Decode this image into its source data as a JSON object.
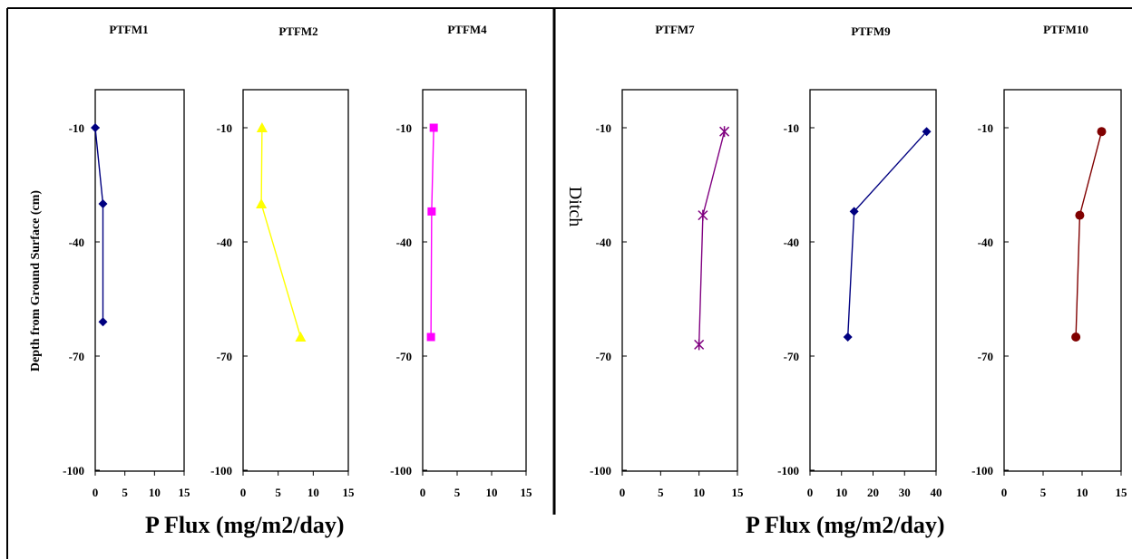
{
  "figure": {
    "left_xlabel": "P Flux (mg/m2/day)",
    "right_xlabel": "P Flux (mg/m2/day)",
    "ylabel": "Depth from Ground Surface (cm)",
    "side_label": "Ditch"
  },
  "chart_data": [
    {
      "type": "line",
      "title": "PTFM1",
      "marker": "diamond",
      "color": "#000080",
      "x": [
        0,
        1.3,
        1.3
      ],
      "y": [
        -10,
        -30,
        -61
      ],
      "xlim": [
        0,
        15
      ],
      "xticks": [
        0,
        5,
        10,
        15
      ],
      "ylim": [
        -100,
        -10
      ],
      "yticks": [
        -10,
        -40,
        -70,
        -100
      ]
    },
    {
      "type": "line",
      "title": "PTFM2",
      "marker": "triangle",
      "color": "#FFFF00",
      "x": [
        2.7,
        2.6,
        8.2
      ],
      "y": [
        -10,
        -30,
        -65
      ],
      "xlim": [
        0,
        15
      ],
      "xticks": [
        0,
        5,
        10,
        15
      ],
      "ylim": [
        -100,
        -10
      ],
      "yticks": [
        -10,
        -40,
        -70,
        -100
      ]
    },
    {
      "type": "line",
      "title": "PTFM4",
      "marker": "square",
      "color": "#FF00FF",
      "x": [
        1.6,
        1.3,
        1.2
      ],
      "y": [
        -10,
        -32,
        -65
      ],
      "xlim": [
        0,
        15
      ],
      "xticks": [
        0,
        5,
        10,
        15
      ],
      "ylim": [
        -100,
        -10
      ],
      "yticks": [
        -10,
        -40,
        -70,
        -100
      ]
    },
    {
      "type": "line",
      "title": "PTFM7",
      "marker": "star",
      "color": "#800080",
      "x": [
        13.3,
        10.5,
        10.0
      ],
      "y": [
        -11,
        -33,
        -67
      ],
      "xlim": [
        0,
        15
      ],
      "xticks": [
        0,
        5,
        10,
        15
      ],
      "ylim": [
        -100,
        -10
      ],
      "yticks": [
        -10,
        -40,
        -70,
        -100
      ]
    },
    {
      "type": "line",
      "title": "PTFM9",
      "marker": "diamond",
      "color": "#000080",
      "x": [
        37,
        14,
        12
      ],
      "y": [
        -11,
        -32,
        -65
      ],
      "xlim": [
        0,
        40
      ],
      "xticks": [
        0,
        10,
        20,
        30,
        40
      ],
      "ylim": [
        -100,
        -10
      ],
      "yticks": [
        -10,
        -40,
        -70,
        -100
      ]
    },
    {
      "type": "line",
      "title": "PTFM10",
      "marker": "circle",
      "color": "#800000",
      "x": [
        12.5,
        9.7,
        9.2
      ],
      "y": [
        -11,
        -33,
        -65
      ],
      "xlim": [
        0,
        15
      ],
      "xticks": [
        0,
        5,
        10,
        15
      ],
      "ylim": [
        -100,
        -10
      ],
      "yticks": [
        -10,
        -40,
        -70,
        -100
      ]
    }
  ]
}
